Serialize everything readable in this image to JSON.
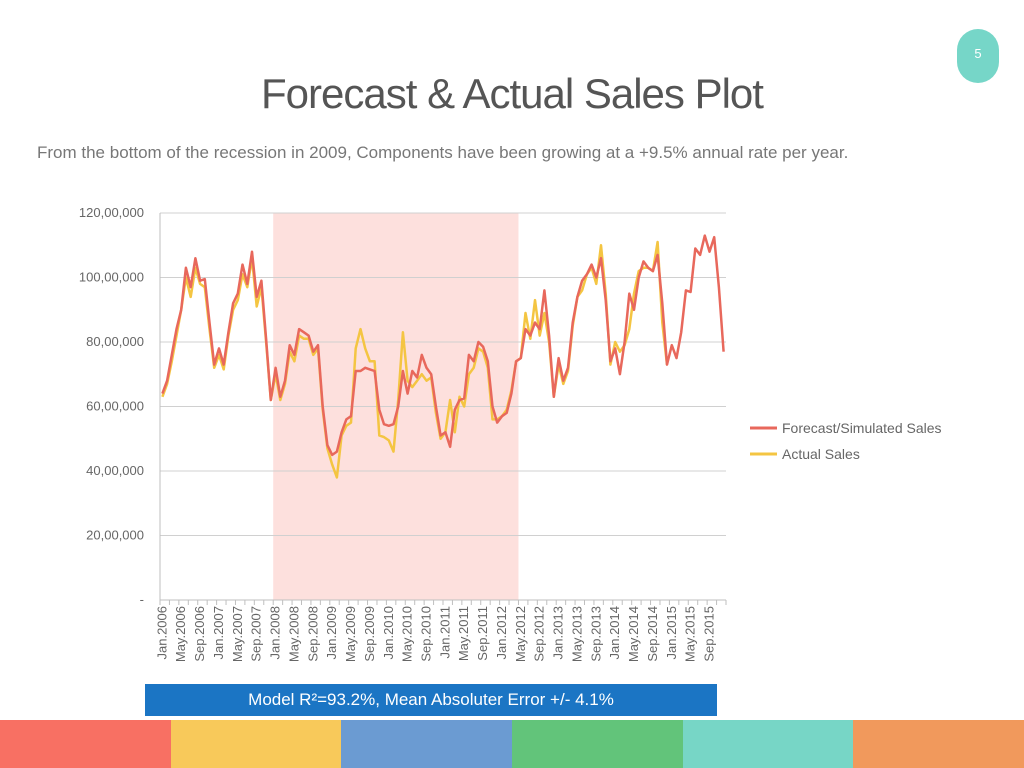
{
  "page": {
    "number": "5"
  },
  "title": "Forecast & Actual Sales Plot",
  "subtitle": "From the bottom of the recession in 2009, Components  have been growing  at a +9.5% annual rate per year.",
  "footnote": "Model R²=93.2%, Mean Absoluter Error  +/- 4.1%",
  "footer_colors": [
    "#f87063",
    "#f8c95a",
    "#6b9bd2",
    "#62c47a",
    "#77d6c6",
    "#f1995c"
  ],
  "chart_data": {
    "type": "line",
    "y_ticks": [
      "-",
      "20,00,000",
      "40,00,000",
      "60,00,000",
      "80,00,000",
      "100,00,000",
      "120,00,000"
    ],
    "ylim": [
      0,
      12000000
    ],
    "x_ticks": [
      "Jan.2006",
      "May.2006",
      "Sep.2006",
      "Jan.2007",
      "May.2007",
      "Sep.2007",
      "Jan.2008",
      "May.2008",
      "Sep.2008",
      "Jan.2009",
      "May.2009",
      "Sep.2009",
      "Jan.2010",
      "May.2010",
      "Sep.2010",
      "Jan.2011",
      "May.2011",
      "Sep.2011",
      "Jan.2012",
      "May.2012",
      "Sep.2012",
      "Jan.2013",
      "May.2013",
      "Sep.2013",
      "Jan.2014",
      "May.2014",
      "Sep.2014",
      "Jan.2015",
      "May.2015",
      "Sep.2015"
    ],
    "x_start": "Jan.2006",
    "x_interval": "1 month",
    "grid": true,
    "legend_position": "right",
    "recession_shade": {
      "from": "Jan.2008",
      "to": "Apr.2012",
      "color": "#fde0dd"
    },
    "series": [
      {
        "name": "Forecast/Simulated Sales",
        "color": "#e8685c",
        "values": [
          6400000,
          6800000,
          7600000,
          8400000,
          9000000,
          10300000,
          9700000,
          10600000,
          9900000,
          9950000,
          8600000,
          7300000,
          7800000,
          7300000,
          8300000,
          9200000,
          9500000,
          10400000,
          9800000,
          10800000,
          9400000,
          9900000,
          8100000,
          6200000,
          7200000,
          6300000,
          6800000,
          7900000,
          7600000,
          8400000,
          8300000,
          8200000,
          7700000,
          7900000,
          6000000,
          4800000,
          4500000,
          4600000,
          5200000,
          5600000,
          5700000,
          7100000,
          7100000,
          7200000,
          7150000,
          7100000,
          5900000,
          5450000,
          5400000,
          5450000,
          6000000,
          7100000,
          6400000,
          7100000,
          6900000,
          7600000,
          7200000,
          7000000,
          6000000,
          5100000,
          5200000,
          4750000,
          5900000,
          6200000,
          6250000,
          7600000,
          7400000,
          8000000,
          7850000,
          7400000,
          6000000,
          5500000,
          5700000,
          5800000,
          6400000,
          7400000,
          7500000,
          8400000,
          8200000,
          8600000,
          8400000,
          9600000,
          8200000,
          6300000,
          7500000,
          6800000,
          7200000,
          8600000,
          9400000,
          9900000,
          10100000,
          10400000,
          10000000,
          10600000,
          9300000,
          7400000,
          7800000,
          7000000,
          8000000,
          9500000,
          9000000,
          10000000,
          10500000,
          10300000,
          10200000,
          10700000,
          9200000,
          7300000,
          7900000,
          7500000,
          8300000,
          9600000,
          9550000,
          10900000,
          10700000,
          11300000,
          10800000,
          11250000,
          9700000,
          7700000
        ]
      },
      {
        "name": "Actual Sales",
        "color": "#f4c542",
        "values": [
          6300000,
          6700000,
          7400000,
          8200000,
          9000000,
          10000000,
          9400000,
          10300000,
          9800000,
          9700000,
          8400000,
          7200000,
          7600000,
          7150000,
          8200000,
          9000000,
          9300000,
          10100000,
          9700000,
          10600000,
          9100000,
          9700000,
          8000000,
          6200000,
          7000000,
          6200000,
          6700000,
          7700000,
          7400000,
          8200000,
          8100000,
          8100000,
          7600000,
          7800000,
          5900000,
          4700000,
          4200000,
          3800000,
          5100000,
          5400000,
          5500000,
          7800000,
          8400000,
          7800000,
          7400000,
          7400000,
          5100000,
          5050000,
          4950000,
          4600000,
          6200000,
          8300000,
          6800000,
          6600000,
          6800000,
          7000000,
          6800000,
          6900000,
          5800000,
          5000000,
          5200000,
          6200000,
          5200000,
          6300000,
          6000000,
          7000000,
          7200000,
          7800000,
          7700000,
          7200000,
          5600000,
          5600000,
          5700000,
          5900000,
          6500000,
          7400000,
          7500000,
          8900000,
          8100000,
          9300000,
          8200000,
          8900000,
          8000000,
          6300000,
          7300000,
          6700000,
          7100000,
          8500000,
          9400000,
          9600000,
          10100000,
          10300000,
          9800000,
          11000000,
          9500000,
          7300000,
          8000000,
          7700000,
          7900000,
          8400000,
          9500000,
          10200000,
          10300000,
          10300000,
          10200000,
          11100000,
          8600000,
          7300000
        ]
      }
    ]
  }
}
